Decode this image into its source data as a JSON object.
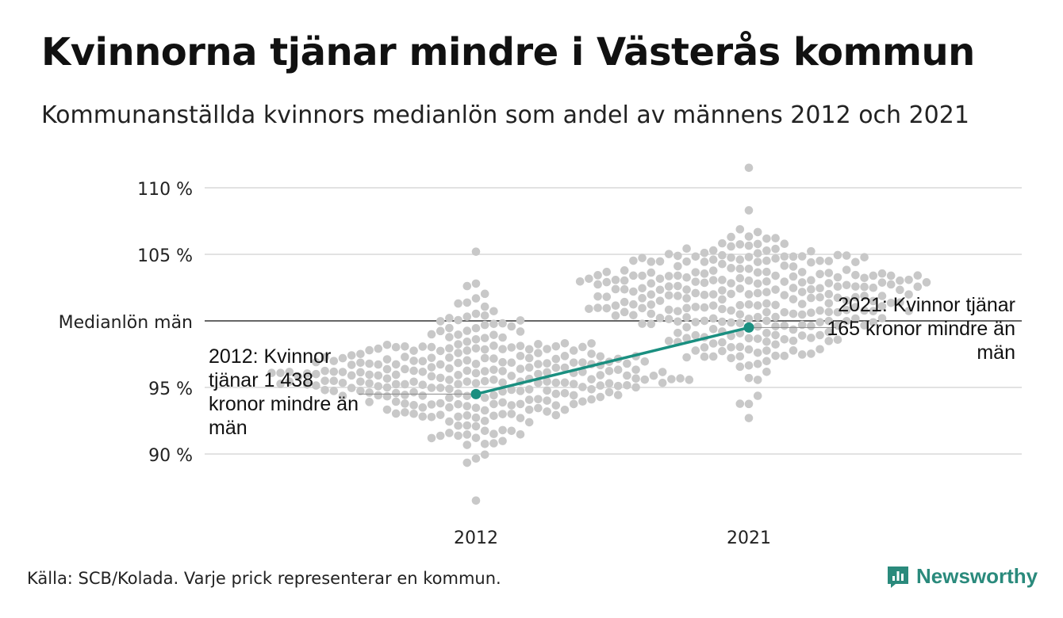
{
  "title": "Kvinnorna tjänar mindre i Västerås kommun",
  "subtitle": "Kommunanställda kvinnors medianlön som andel av männens 2012 och 2021",
  "source": "Källa: SCB/Kolada. Varje prick representerar en kommun.",
  "brand": "Newsworthy",
  "colors": {
    "dots": "#c8c8c8",
    "highlight": "#1a8f80",
    "grid": "#e2e2e2",
    "reference": "#333333"
  },
  "chart_data": {
    "type": "scatter",
    "variant": "beeswarm",
    "x": [
      "2012",
      "2021"
    ],
    "ylim": [
      86,
      111.5
    ],
    "y_ticks": [
      {
        "value": 90,
        "label": "90 %"
      },
      {
        "value": 95,
        "label": "95 %"
      },
      {
        "value": 105,
        "label": "105 %"
      },
      {
        "value": 110,
        "label": "110 %"
      }
    ],
    "reference_line": {
      "value": 100,
      "label": "Medianlön män"
    },
    "highlight": {
      "name": "Västerås",
      "values": [
        {
          "x": "2012",
          "y": 94.5
        },
        {
          "x": "2021",
          "y": 99.5
        }
      ]
    },
    "annotations": [
      {
        "x": "2012",
        "text": "2012: Kvinnor tjänar 1 438 kronor mindre än män"
      },
      {
        "x": "2021",
        "text": "2021: Kvinnor tjänar 165 kronor mindre än män"
      }
    ],
    "grid": true,
    "distribution": [
      {
        "x": "2012",
        "min": 86.5,
        "max": 105.2,
        "center": 96.0,
        "spread": 2.4
      },
      {
        "x": "2021",
        "min": 92.7,
        "max": 111.5,
        "center": 101.5,
        "spread": 2.5
      }
    ]
  }
}
